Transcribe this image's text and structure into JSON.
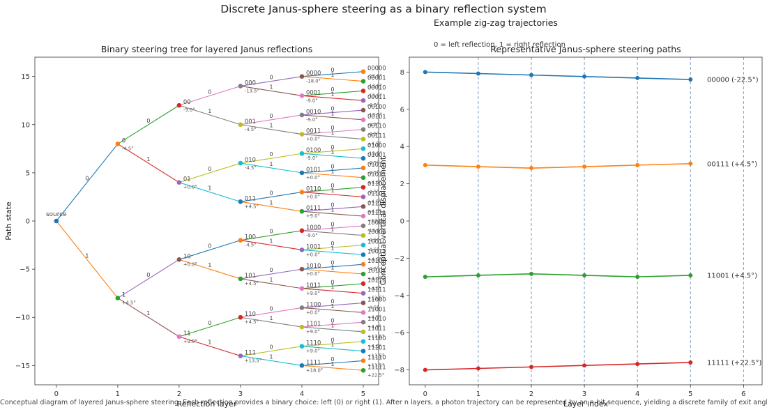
{
  "figure": {
    "suptitle": "Discrete Janus-sphere steering as a binary reflection system",
    "right_subtitle": "Example zig-zag trajectories",
    "right_note": "0 = left reflection, 1 = right reflection",
    "caption": "Conceptual diagram of layered Janus-sphere steering. Each reflection provides a binary choice: left (0) or right (1). After n layers, a photon trajectory can be represented by an n-bit sequence, yielding a discrete family of exit angles."
  },
  "chart_data": [
    {
      "type": "tree",
      "title": "Binary steering tree for layered Janus reflections",
      "xlabel": "Reflection layer",
      "ylabel": "Path state",
      "xlim": [
        -0.35,
        5.25
      ],
      "ylim": [
        -17,
        17
      ],
      "xticks": [
        0,
        1,
        2,
        3,
        4,
        5
      ],
      "yticks": [
        -15,
        -10,
        -5,
        0,
        5,
        10,
        15
      ],
      "root_label": "source",
      "angle_step_deg": 4.5,
      "nodes_by_layer": [
        [
          {
            "bits": "",
            "y": 0
          }
        ],
        [
          {
            "bits": "0",
            "y": 8,
            "angle": "-4.5°"
          },
          {
            "bits": "1",
            "y": -8,
            "angle": "+4.5°"
          }
        ],
        [
          {
            "bits": "00",
            "y": 12,
            "angle": "-9.0°"
          },
          {
            "bits": "01",
            "y": 4,
            "angle": "+0.0°"
          },
          {
            "bits": "10",
            "y": -4,
            "angle": "+0.0°"
          },
          {
            "bits": "11",
            "y": -12,
            "angle": "+9.0°"
          }
        ],
        [
          {
            "bits": "000",
            "y": 14,
            "angle": "-13.5°"
          },
          {
            "bits": "001",
            "y": 10,
            "angle": "-4.5°"
          },
          {
            "bits": "010",
            "y": 6,
            "angle": "-4.5°"
          },
          {
            "bits": "011",
            "y": 2,
            "angle": "+4.5°"
          },
          {
            "bits": "100",
            "y": -2,
            "angle": "-4.5°"
          },
          {
            "bits": "101",
            "y": -6,
            "angle": "+4.5°"
          },
          {
            "bits": "110",
            "y": -10,
            "angle": "+4.5°"
          },
          {
            "bits": "111",
            "y": -14,
            "angle": "+13.5°"
          }
        ],
        [
          {
            "bits": "0000",
            "y": 15,
            "angle": "-18.0°"
          },
          {
            "bits": "0001",
            "y": 13,
            "angle": "-9.0°"
          },
          {
            "bits": "0010",
            "y": 11,
            "angle": "-9.0°"
          },
          {
            "bits": "0011",
            "y": 9,
            "angle": "+0.0°"
          },
          {
            "bits": "0100",
            "y": 7,
            "angle": "-9.0°"
          },
          {
            "bits": "0101",
            "y": 5,
            "angle": "+0.0°"
          },
          {
            "bits": "0110",
            "y": 3,
            "angle": "+0.0°"
          },
          {
            "bits": "0111",
            "y": 1,
            "angle": "+9.0°"
          },
          {
            "bits": "1000",
            "y": -1,
            "angle": "-9.0°"
          },
          {
            "bits": "1001",
            "y": -3,
            "angle": "+0.0°"
          },
          {
            "bits": "1010",
            "y": -5,
            "angle": "+0.0°"
          },
          {
            "bits": "1011",
            "y": -7,
            "angle": "+9.0°"
          },
          {
            "bits": "1100",
            "y": -9,
            "angle": "+0.0°"
          },
          {
            "bits": "1101",
            "y": -11,
            "angle": "+9.0°"
          },
          {
            "bits": "1110",
            "y": -13,
            "angle": "+9.0°"
          },
          {
            "bits": "1111",
            "y": -15,
            "angle": "+18.0°"
          }
        ],
        [
          {
            "bits": "00000",
            "y": 15.5,
            "angle": "-22.5°"
          },
          {
            "bits": "00001",
            "y": 14.5,
            "angle": "-13.5°"
          },
          {
            "bits": "00010",
            "y": 13.5,
            "angle": "-13.5°"
          },
          {
            "bits": "00011",
            "y": 12.5,
            "angle": "-4.5°"
          },
          {
            "bits": "00100",
            "y": 11.5,
            "angle": "-13.5°"
          },
          {
            "bits": "00101",
            "y": 10.5,
            "angle": "-4.5°"
          },
          {
            "bits": "00110",
            "y": 9.5,
            "angle": "-4.5°"
          },
          {
            "bits": "00111",
            "y": 8.5,
            "angle": "+4.5°"
          },
          {
            "bits": "01000",
            "y": 7.5,
            "angle": "-13.5°"
          },
          {
            "bits": "01001",
            "y": 6.5,
            "angle": "-4.5°"
          },
          {
            "bits": "01010",
            "y": 5.5,
            "angle": "-4.5°"
          },
          {
            "bits": "01011",
            "y": 4.5,
            "angle": "+4.5°"
          },
          {
            "bits": "01100",
            "y": 3.5,
            "angle": "-4.5°"
          },
          {
            "bits": "01101",
            "y": 2.5,
            "angle": "+4.5°"
          },
          {
            "bits": "01110",
            "y": 1.5,
            "angle": "+4.5°"
          },
          {
            "bits": "01111",
            "y": 0.5,
            "angle": "+13.5°"
          },
          {
            "bits": "10000",
            "y": -0.5,
            "angle": "-13.5°"
          },
          {
            "bits": "10001",
            "y": -1.5,
            "angle": "-4.5°"
          },
          {
            "bits": "10010",
            "y": -2.5,
            "angle": "-4.5°"
          },
          {
            "bits": "10011",
            "y": -3.5,
            "angle": "+4.5°"
          },
          {
            "bits": "10100",
            "y": -4.5,
            "angle": "-4.5°"
          },
          {
            "bits": "10101",
            "y": -5.5,
            "angle": "+4.5°"
          },
          {
            "bits": "10110",
            "y": -6.5,
            "angle": "+4.5°"
          },
          {
            "bits": "10111",
            "y": -7.5,
            "angle": "+13.5°"
          },
          {
            "bits": "11000",
            "y": -8.5,
            "angle": "-4.5°"
          },
          {
            "bits": "11001",
            "y": -9.5,
            "angle": "+4.5°"
          },
          {
            "bits": "11010",
            "y": -10.5,
            "angle": "+4.5°"
          },
          {
            "bits": "11011",
            "y": -11.5,
            "angle": "+13.5°"
          },
          {
            "bits": "11100",
            "y": -12.5,
            "angle": "+4.5°"
          },
          {
            "bits": "11101",
            "y": -13.5,
            "angle": "+13.5°"
          },
          {
            "bits": "11110",
            "y": -14.5,
            "angle": "+13.5°"
          },
          {
            "bits": "11111",
            "y": -15.5,
            "angle": "+22.5°"
          }
        ]
      ],
      "colors": [
        "#1f77b4",
        "#ff7f0e",
        "#2ca02c",
        "#d62728",
        "#9467bd",
        "#8c564b",
        "#e377c2",
        "#7f7f7f",
        "#bcbd22",
        "#17becf"
      ],
      "grid": false
    },
    {
      "type": "line",
      "title": "Representative Janus-sphere steering paths",
      "xlabel": "Layer index",
      "ylabel": "Conceptual vertical displacement",
      "xlim": [
        -0.3,
        6.35
      ],
      "ylim": [
        -8.8,
        8.8
      ],
      "xticks": [
        0,
        1,
        2,
        3,
        4,
        5,
        6
      ],
      "yticks": [
        -8,
        -6,
        -4,
        -2,
        0,
        2,
        4,
        6,
        8
      ],
      "layer_lines": [
        1,
        2,
        3,
        4,
        5,
        6
      ],
      "series": [
        {
          "name": "00000  (-22.5°)",
          "color": "#1f77b4",
          "x": [
            0,
            1,
            2,
            3,
            4,
            5
          ],
          "y": [
            8.0,
            7.92,
            7.84,
            7.76,
            7.68,
            7.6
          ]
        },
        {
          "name": "00111  (+4.5°)",
          "color": "#ff7f0e",
          "x": [
            0,
            1,
            2,
            3,
            4,
            5
          ],
          "y": [
            3.0,
            2.92,
            2.84,
            2.92,
            3.0,
            3.08
          ]
        },
        {
          "name": "11001  (+4.5°)",
          "color": "#2ca02c",
          "x": [
            0,
            1,
            2,
            3,
            4,
            5
          ],
          "y": [
            -3.0,
            -2.92,
            -2.84,
            -2.92,
            -3.0,
            -2.92
          ]
        },
        {
          "name": "11111  (+22.5°)",
          "color": "#d62728",
          "x": [
            0,
            1,
            2,
            3,
            4,
            5
          ],
          "y": [
            -8.0,
            -7.92,
            -7.84,
            -7.76,
            -7.68,
            -7.6
          ]
        }
      ],
      "grid": false
    }
  ]
}
